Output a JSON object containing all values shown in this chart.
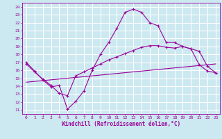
{
  "xlabel": "Windchill (Refroidissement éolien,°C)",
  "xlim": [
    -0.5,
    23.5
  ],
  "ylim": [
    10.5,
    24.5
  ],
  "xticks": [
    0,
    1,
    2,
    3,
    4,
    5,
    6,
    7,
    8,
    9,
    10,
    11,
    12,
    13,
    14,
    15,
    16,
    17,
    18,
    19,
    20,
    21,
    22,
    23
  ],
  "yticks": [
    11,
    12,
    13,
    14,
    15,
    16,
    17,
    18,
    19,
    20,
    21,
    22,
    23,
    24
  ],
  "background_color": "#cce8f0",
  "grid_color": "#ffffff",
  "line_color": "#990099",
  "line1_x": [
    0,
    1,
    2,
    3,
    4,
    5,
    6,
    7,
    8,
    9,
    10,
    11,
    12,
    13,
    14,
    15,
    16,
    17,
    18,
    19,
    20,
    21,
    22,
    23
  ],
  "line1_y": [
    17.0,
    15.9,
    14.8,
    13.9,
    14.1,
    11.1,
    12.1,
    13.4,
    16.0,
    18.0,
    19.5,
    21.3,
    23.3,
    23.7,
    23.3,
    22.0,
    21.6,
    19.5,
    19.5,
    19.0,
    18.7,
    16.7,
    15.9,
    15.7
  ],
  "line2_x": [
    0,
    1,
    2,
    3,
    4,
    5,
    6,
    7,
    8,
    9,
    10,
    11,
    12,
    13,
    14,
    15,
    16,
    17,
    18,
    19,
    20,
    21,
    22,
    23
  ],
  "line2_y": [
    14.5,
    14.6,
    14.7,
    14.8,
    14.9,
    15.0,
    15.1,
    15.2,
    15.3,
    15.4,
    15.5,
    15.6,
    15.7,
    15.8,
    15.9,
    16.0,
    16.1,
    16.2,
    16.3,
    16.4,
    16.5,
    16.6,
    16.7,
    16.8
  ],
  "line3_x": [
    0,
    1,
    2,
    3,
    4,
    5,
    6,
    7,
    8,
    9,
    10,
    11,
    12,
    13,
    14,
    15,
    16,
    17,
    18,
    19,
    20,
    21,
    22,
    23
  ],
  "line3_y": [
    16.8,
    15.8,
    14.9,
    14.1,
    13.1,
    12.8,
    15.3,
    15.8,
    16.3,
    16.8,
    17.3,
    17.7,
    18.1,
    18.5,
    18.9,
    19.1,
    19.1,
    18.9,
    18.8,
    19.0,
    18.7,
    18.4,
    16.5,
    15.7
  ]
}
